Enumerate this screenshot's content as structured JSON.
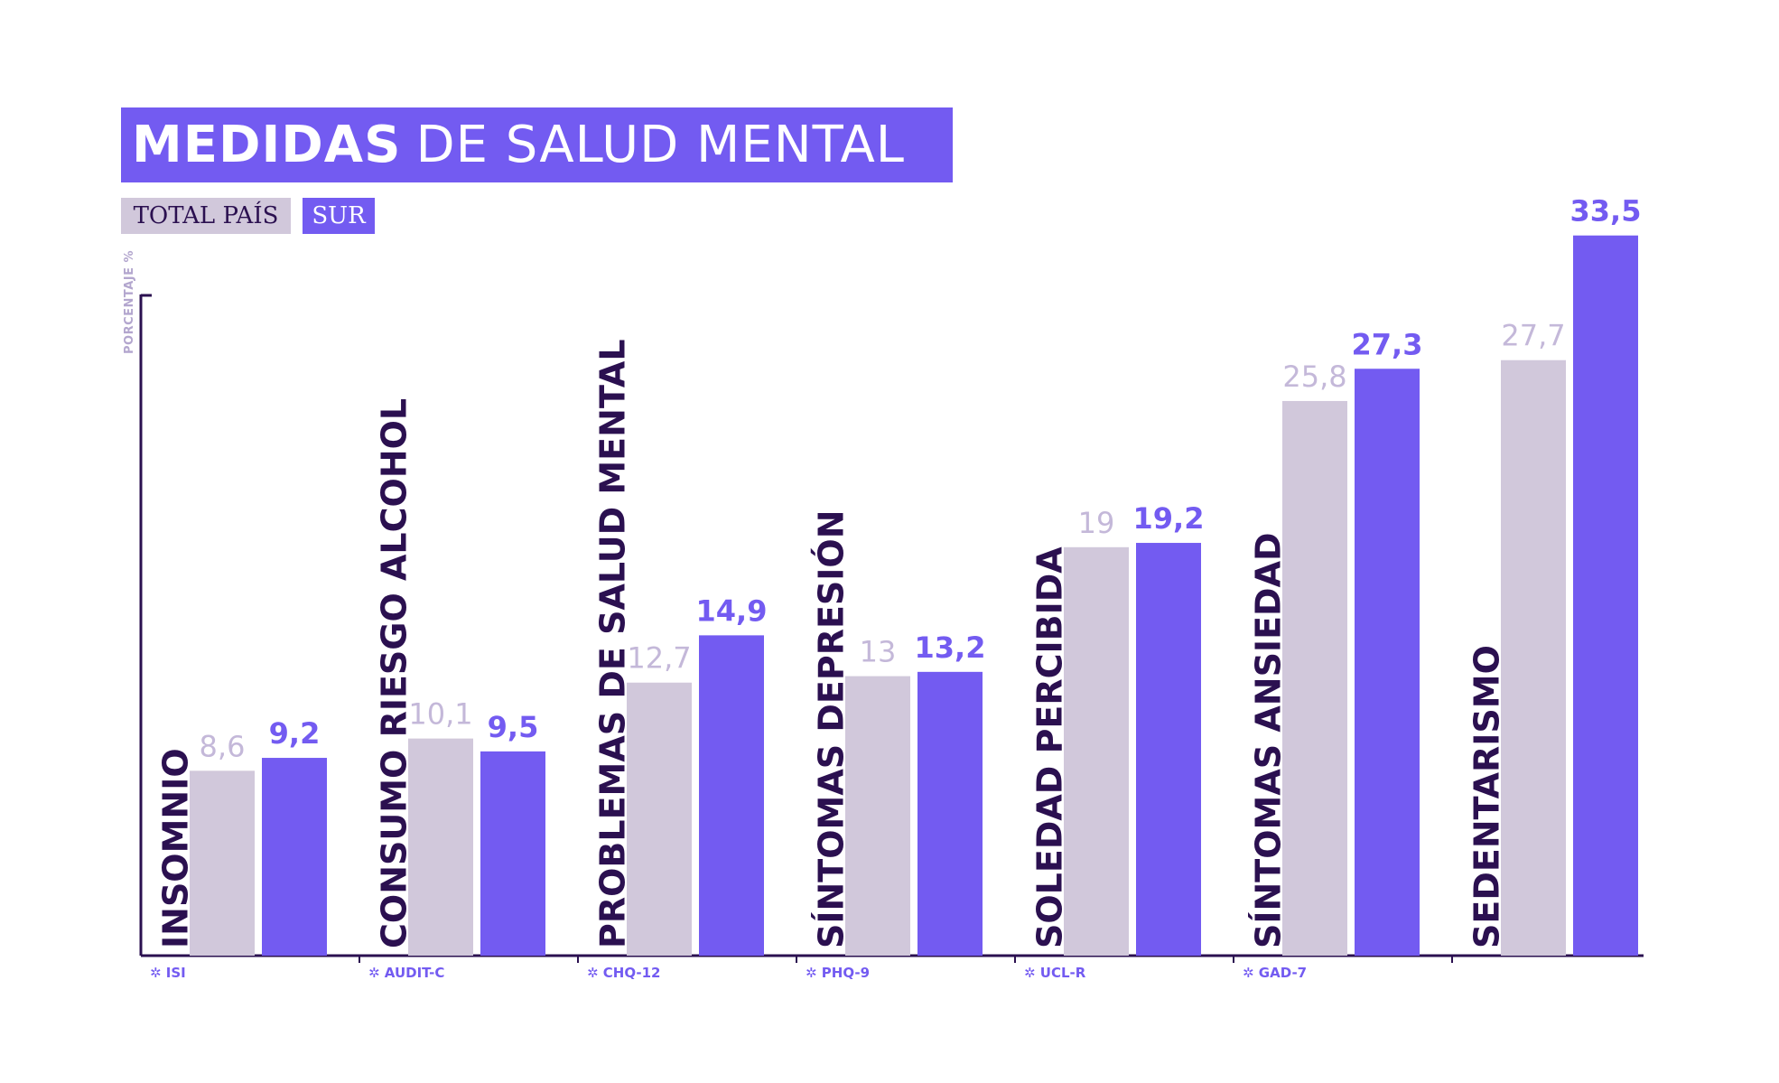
{
  "title": {
    "bold": "MEDIDAS",
    "light": "DE SALUD MENTAL"
  },
  "legend": {
    "total": "TOTAL PAÍS",
    "sur": "SUR"
  },
  "colors": {
    "total": "#D1C8DB",
    "sur": "#735BF1",
    "label_total": "#C4B8D9",
    "axis": "#2B1050",
    "category_text": "#2B1050"
  },
  "chart_data": {
    "type": "bar",
    "title": "MEDIDAS DE SALUD MENTAL",
    "ylabel": "PORCENTAJE %",
    "xlabel": "",
    "ylim": [
      0,
      36.5
    ],
    "legend": "top-left",
    "grid": false,
    "categories": [
      "INSOMNIO",
      "CONSUMO RIESGO ALCOHOL",
      "PROBLEMAS DE SALUD MENTAL",
      "SÍNTOMAS DEPRESIÓN",
      "SOLEDAD PERCIBIDA",
      "SÍNTOMAS ANSIEDAD",
      "SEDENTARISMO"
    ],
    "scales": [
      "✲ ISI",
      "✲ AUDIT-C",
      "✲ CHQ-12",
      "✲ PHQ-9",
      "✲ UCL-R",
      "✲ GAD-7",
      ""
    ],
    "series": [
      {
        "name": "TOTAL PAÍS",
        "values": [
          8.6,
          10.1,
          12.7,
          13,
          19,
          25.8,
          27.7
        ],
        "labels": [
          "8,6",
          "10,1",
          "12,7",
          "13",
          "19",
          "25,8",
          "27,7"
        ]
      },
      {
        "name": "SUR",
        "values": [
          9.2,
          9.5,
          14.9,
          13.2,
          19.2,
          27.3,
          33.5
        ],
        "labels": [
          "9,2",
          "9,5",
          "14,9",
          "13,2",
          "19,2",
          "27,3",
          "33,5"
        ]
      }
    ]
  }
}
